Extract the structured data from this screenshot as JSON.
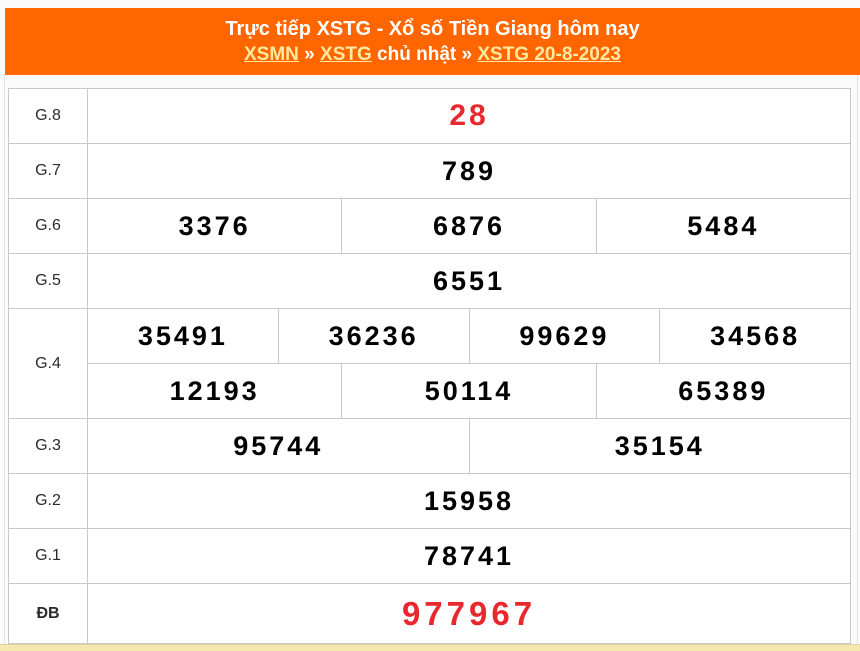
{
  "header": {
    "title": "Trực tiếp XSTG - Xổ số Tiền Giang hôm nay",
    "breadcrumb": {
      "link1": "XSMN",
      "sep1": "»",
      "link2": "XSTG",
      "text1": "chủ nhật",
      "sep2": "»",
      "link3": "XSTG 20-8-2023"
    },
    "colors": {
      "background": "#ff6600",
      "title_text": "#ffffff",
      "link_text": "#ffe9a0"
    }
  },
  "results": {
    "rows": [
      {
        "label": "G.8",
        "groups": [
          [
            "28"
          ]
        ]
      },
      {
        "label": "G.7",
        "groups": [
          [
            "789"
          ]
        ]
      },
      {
        "label": "G.6",
        "groups": [
          [
            "3376",
            "6876",
            "5484"
          ]
        ]
      },
      {
        "label": "G.5",
        "groups": [
          [
            "6551"
          ]
        ]
      },
      {
        "label": "G.4",
        "groups": [
          [
            "35491",
            "36236",
            "99629",
            "34568"
          ],
          [
            "12193",
            "50114",
            "65389"
          ]
        ]
      },
      {
        "label": "G.3",
        "groups": [
          [
            "95744",
            "35154"
          ]
        ]
      },
      {
        "label": "G.2",
        "groups": [
          [
            "15958"
          ]
        ]
      },
      {
        "label": "G.1",
        "groups": [
          [
            "78741"
          ]
        ]
      },
      {
        "label": "ĐB",
        "groups": [
          [
            "977967"
          ]
        ]
      }
    ],
    "colors": {
      "value_text": "#000000",
      "highlight_text": "#e8282d",
      "border": "#c9c9c9",
      "bottom_strip": "#f6e8ac"
    }
  }
}
